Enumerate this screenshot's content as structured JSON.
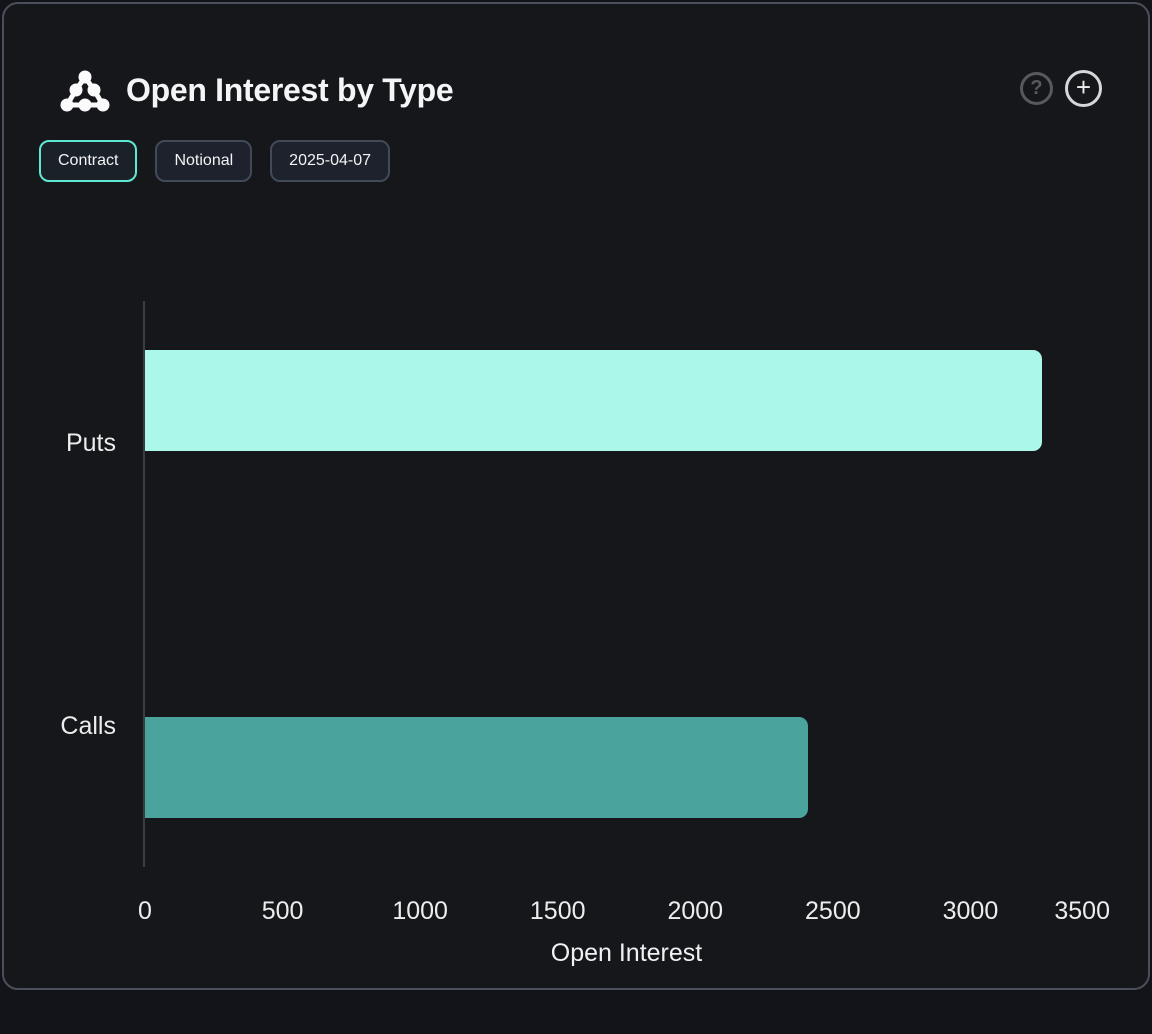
{
  "header": {
    "title": "Open Interest by Type",
    "actions": [
      {
        "name": "help",
        "glyph": "?"
      },
      {
        "name": "add",
        "glyph": "+"
      }
    ]
  },
  "toolbar": {
    "buttons": [
      {
        "label": "Contract",
        "selected": true
      },
      {
        "label": "Notional",
        "selected": false
      },
      {
        "label": "2025-04-07",
        "selected": false
      }
    ]
  },
  "chart_data": {
    "type": "bar",
    "orientation": "horizontal",
    "categories": [
      "Puts",
      "Calls"
    ],
    "values": [
      3260,
      2410
    ],
    "colors": [
      "#abf8ea",
      "#4aa39d"
    ],
    "xlabel": "Open Interest",
    "xticks": [
      0,
      500,
      1000,
      1500,
      2000,
      2500,
      3000,
      3500
    ],
    "xlim": [
      0,
      3500
    ],
    "grid": false,
    "legend": "none"
  },
  "theme": {
    "card_bg": "#16171b",
    "page_bg": "#131419",
    "border": "#49505c",
    "selected_border": "#5fe8d1",
    "text": "#f2f3f4",
    "axis_line": "#393d42"
  }
}
